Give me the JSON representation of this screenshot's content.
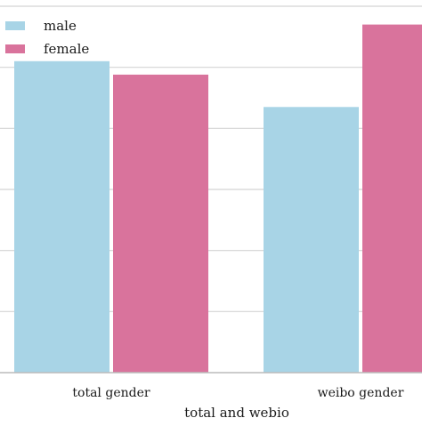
{
  "chart_data": {
    "type": "bar",
    "title": "",
    "xlabel": "total and webio",
    "ylabel": "",
    "categories": [
      "total gender",
      "weibo gender"
    ],
    "series": [
      {
        "name": "male",
        "values": [
          0.51,
          0.435
        ]
      },
      {
        "name": "female",
        "values": [
          0.488,
          0.57
        ]
      }
    ],
    "ylim": [
      0,
      0.6
    ],
    "yticks": [
      0.1,
      0.2,
      0.3,
      0.4,
      0.5,
      0.6
    ],
    "grid": true,
    "legend_position": "top-left",
    "colors": {
      "male": "#a8d4e6",
      "female": "#d9739c",
      "grid": "#d4d4d4",
      "axis": "#bcbcbc",
      "text": "#1a1a1a"
    }
  }
}
